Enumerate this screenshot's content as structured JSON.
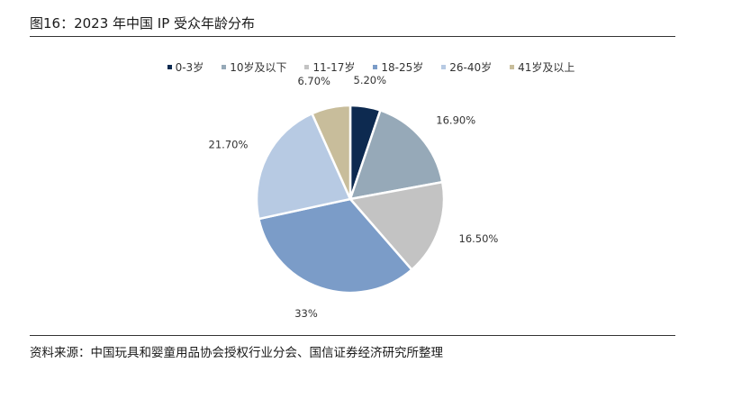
{
  "header": {
    "title": "图16：2023 年中国 IP 受众年龄分布"
  },
  "footer": {
    "source": "资料来源：中国玩具和婴童用品协会授权行业分会、国信证券经济研究所整理"
  },
  "chart_data": {
    "type": "pie",
    "title": "",
    "legend_position": "top",
    "slices": [
      {
        "name": "0-3岁",
        "value": 5.2,
        "label": "5.20%",
        "color": "#0d2a50"
      },
      {
        "name": "10岁及以下",
        "value": 16.9,
        "label": "16.90%",
        "color": "#96a9b8"
      },
      {
        "name": "11-17岁",
        "value": 16.5,
        "label": "16.50%",
        "color": "#c3c3c3"
      },
      {
        "name": "18-25岁",
        "value": 33,
        "label": "33%",
        "color": "#7b9cc8"
      },
      {
        "name": "26-40岁",
        "value": 21.7,
        "label": "21.70%",
        "color": "#b7cae3"
      },
      {
        "name": "41岁及以上",
        "value": 6.7,
        "label": "6.70%",
        "color": "#c8bd9b"
      }
    ]
  }
}
